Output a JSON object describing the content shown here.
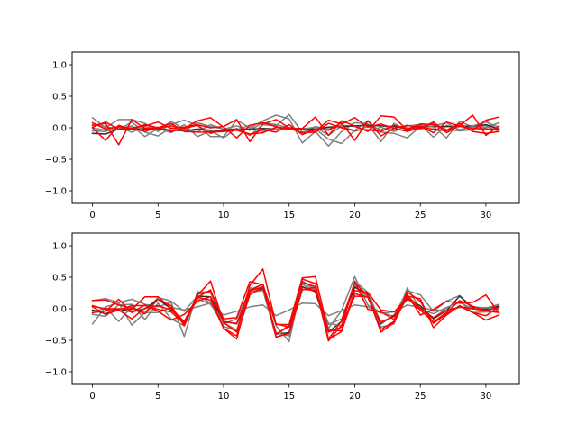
{
  "chart_data": [
    {
      "type": "line",
      "title": "",
      "xlabel": "",
      "ylabel": "",
      "xlim": [
        -1.55,
        32.55
      ],
      "ylim": [
        -1.2,
        1.2
      ],
      "xticks": [
        0,
        5,
        10,
        15,
        20,
        25,
        30
      ],
      "yticks": [
        -1.0,
        -0.5,
        0.0,
        0.5,
        1.0
      ],
      "grid": false,
      "x": [
        0,
        1,
        2,
        3,
        4,
        5,
        6,
        7,
        8,
        9,
        10,
        11,
        12,
        13,
        14,
        15,
        16,
        17,
        18,
        19,
        20,
        21,
        22,
        23,
        24,
        25,
        26,
        27,
        28,
        29,
        30,
        31
      ],
      "series": [
        {
          "color": "#808080",
          "values": [
            0.16,
            0.0,
            0.13,
            0.13,
            0.07,
            -0.06,
            0.05,
            0.12,
            0.04,
            -0.14,
            -0.14,
            0.12,
            0.0,
            0.11,
            0.2,
            0.14,
            -0.24,
            -0.06,
            -0.29,
            -0.06,
            0.08,
            0.06,
            -0.22,
            0.07,
            -0.05,
            0.05,
            0.02,
            -0.16,
            0.1,
            0.01,
            0.0,
            0.08
          ]
        },
        {
          "color": "#808080",
          "values": [
            0.0,
            -0.04,
            -0.02,
            0.03,
            -0.14,
            -0.01,
            -0.08,
            0.05,
            -0.14,
            -0.05,
            -0.16,
            -0.01,
            -0.12,
            0.05,
            0.03,
            0.21,
            -0.07,
            -0.02,
            -0.18,
            -0.25,
            -0.04,
            0.11,
            -0.07,
            -0.09,
            -0.16,
            0.02,
            0.07,
            -0.03,
            -0.05,
            -0.03,
            0.11,
            -0.05
          ]
        },
        {
          "color": "#808080",
          "values": [
            -0.05,
            -0.06,
            0.01,
            -0.07,
            0.02,
            -0.03,
            0.1,
            -0.02,
            -0.07,
            0.05,
            -0.02,
            0.03,
            -0.04,
            0.08,
            0.05,
            0.0,
            -0.08,
            0.02,
            -0.02,
            0.04,
            0.02,
            -0.05,
            0.01,
            -0.06,
            0.03,
            0.05,
            -0.15,
            0.04,
            -0.03,
            0.01,
            0.03,
            -0.06
          ]
        },
        {
          "color": "#303030",
          "values": [
            -0.09,
            -0.1,
            -0.02,
            -0.02,
            -0.02,
            -0.01,
            -0.04,
            -0.05,
            -0.02,
            -0.04,
            -0.05,
            -0.03,
            -0.02,
            -0.01,
            -0.02,
            -0.01,
            -0.01,
            -0.02,
            0.01,
            0.02,
            0.03,
            0.04,
            0.03,
            0.02,
            -0.01,
            0.01,
            0.02,
            0.02,
            0.02,
            0.03,
            0.05,
            -0.02
          ]
        },
        {
          "color": "#808080",
          "values": [
            0.05,
            0.02,
            -0.03,
            0.09,
            -0.07,
            -0.13,
            0.0,
            -0.05,
            0.08,
            0.02,
            -0.02,
            -0.03,
            0.04,
            -0.06,
            -0.02,
            0.0,
            -0.02,
            0.01,
            -0.12,
            0.03,
            -0.06,
            0.02,
            -0.03,
            0.04,
            0.0,
            -0.02,
            0.03,
            0.08,
            -0.04,
            0.03,
            0.09,
            0.01
          ]
        },
        {
          "color": "#ff0000",
          "values": [
            0.04,
            0.07,
            -0.27,
            0.13,
            -0.01,
            0.0,
            0.03,
            -0.01,
            0.11,
            0.16,
            0.01,
            -0.16,
            0.04,
            0.08,
            0.02,
            -0.03,
            -0.01,
            0.17,
            -0.12,
            0.11,
            0.03,
            -0.06,
            0.19,
            0.17,
            -0.04,
            0.03,
            -0.08,
            0.09,
            0.03,
            -0.04,
            0.12,
            0.17
          ]
        },
        {
          "color": "#ff0000",
          "values": [
            0.01,
            0.09,
            -0.02,
            0.0,
            0.03,
            0.09,
            -0.01,
            0.01,
            0.05,
            0.0,
            0.02,
            0.13,
            -0.22,
            0.06,
            0.13,
            0.0,
            -0.02,
            -0.06,
            0.12,
            0.06,
            0.16,
            0.01,
            0.06,
            -0.01,
            0.04,
            -0.01,
            0.09,
            -0.08,
            0.04,
            0.2,
            -0.12,
            0.03
          ]
        },
        {
          "color": "#ff0000",
          "values": [
            0.0,
            -0.2,
            0.04,
            -0.03,
            0.05,
            0.0,
            0.07,
            -0.06,
            -0.07,
            -0.07,
            -0.06,
            -0.04,
            -0.1,
            -0.08,
            0.01,
            -0.01,
            -0.08,
            -0.07,
            0.07,
            0.0,
            -0.04,
            -0.03,
            -0.06,
            0.04,
            -0.02,
            0.06,
            0.05,
            -0.04,
            0.07,
            -0.06,
            -0.09,
            -0.06
          ]
        },
        {
          "color": "#ff0000",
          "values": [
            0.08,
            -0.02,
            0.02,
            -0.01,
            -0.06,
            0.01,
            -0.06,
            -0.01,
            0.04,
            -0.09,
            -0.03,
            -0.02,
            -0.11,
            -0.03,
            -0.07,
            0.05,
            -0.11,
            -0.02,
            -0.04,
            0.08,
            -0.2,
            0.11,
            -0.13,
            -0.01,
            -0.06,
            0.0,
            -0.02,
            -0.05,
            0.03,
            -0.01,
            -0.02,
            -0.02
          ]
        }
      ]
    },
    {
      "type": "line",
      "title": "",
      "xlabel": "",
      "ylabel": "",
      "xlim": [
        -1.55,
        32.55
      ],
      "ylim": [
        -1.2,
        1.2
      ],
      "xticks": [
        0,
        5,
        10,
        15,
        20,
        25,
        30
      ],
      "yticks": [
        -1.0,
        -0.5,
        0.0,
        0.5,
        1.0
      ],
      "grid": false,
      "x": [
        0,
        1,
        2,
        3,
        4,
        5,
        6,
        7,
        8,
        9,
        10,
        11,
        12,
        13,
        14,
        15,
        16,
        17,
        18,
        19,
        20,
        21,
        22,
        23,
        24,
        25,
        26,
        27,
        28,
        29,
        30,
        31
      ],
      "series": [
        {
          "color": "#808080",
          "values": [
            0.13,
            0.16,
            0.1,
            0.15,
            0.07,
            0.03,
            0.1,
            -0.44,
            0.27,
            0.26,
            -0.24,
            -0.16,
            0.3,
            0.39,
            -0.27,
            -0.52,
            0.44,
            0.31,
            -0.31,
            -0.03,
            0.51,
            0.06,
            -0.06,
            -0.12,
            0.29,
            0.22,
            -0.04,
            0.12,
            0.21,
            0.0,
            0.01,
            0.07
          ]
        },
        {
          "color": "#808080",
          "values": [
            -0.24,
            0.03,
            0.09,
            -0.26,
            -0.06,
            0.18,
            0.12,
            -0.04,
            0.2,
            0.1,
            -0.28,
            -0.35,
            0.33,
            0.3,
            -0.45,
            -0.37,
            0.39,
            0.28,
            -0.25,
            -0.16,
            0.37,
            0.18,
            -0.29,
            -0.24,
            0.33,
            0.0,
            -0.15,
            0.01,
            0.12,
            -0.06,
            -0.05,
            -0.05
          ]
        },
        {
          "color": "#808080",
          "values": [
            -0.07,
            0.02,
            -0.2,
            0.03,
            -0.06,
            -0.06,
            0.02,
            -0.02,
            0.03,
            0.09,
            -0.1,
            -0.04,
            0.03,
            0.06,
            -0.11,
            -0.02,
            0.09,
            0.08,
            -0.11,
            -0.03,
            0.06,
            0.03,
            -0.07,
            -0.05,
            0.06,
            0.02,
            -0.02,
            -0.03,
            0.02,
            0.03,
            0.01,
            0.06
          ]
        },
        {
          "color": "#303030",
          "values": [
            -0.02,
            -0.08,
            0.0,
            -0.05,
            0.0,
            0.15,
            0.0,
            -0.22,
            0.2,
            0.19,
            -0.2,
            -0.24,
            0.25,
            0.32,
            -0.4,
            -0.38,
            0.35,
            0.27,
            -0.37,
            -0.2,
            0.34,
            0.23,
            -0.24,
            -0.1,
            0.15,
            0.05,
            -0.16,
            -0.03,
            0.2,
            0.02,
            -0.01,
            0.04
          ]
        },
        {
          "color": "#808080",
          "values": [
            -0.09,
            -0.12,
            0.06,
            0.07,
            -0.17,
            0.09,
            -0.16,
            -0.27,
            0.16,
            0.07,
            -0.22,
            -0.34,
            0.26,
            0.29,
            -0.38,
            -0.43,
            0.43,
            0.3,
            -0.23,
            -0.27,
            0.44,
            0.26,
            -0.22,
            -0.12,
            0.18,
            0.0,
            -0.08,
            0.02,
            0.1,
            0.0,
            0.02,
            -0.01
          ]
        },
        {
          "color": "#ff0000",
          "values": [
            0.04,
            0.0,
            0.0,
            -0.01,
            0.19,
            0.19,
            0.01,
            -0.21,
            0.21,
            0.44,
            -0.22,
            -0.37,
            0.37,
            0.63,
            -0.25,
            -0.25,
            0.49,
            0.51,
            -0.37,
            -0.29,
            0.43,
            -0.01,
            -0.05,
            -0.17,
            0.23,
            -0.1,
            -0.01,
            0.12,
            0.09,
            0.1,
            0.22,
            -0.07
          ]
        },
        {
          "color": "#ff0000",
          "values": [
            0.13,
            0.14,
            0.06,
            0.01,
            -0.08,
            0.15,
            0.05,
            -0.27,
            0.23,
            0.28,
            -0.16,
            -0.14,
            0.43,
            0.38,
            -0.24,
            -0.29,
            0.47,
            0.4,
            -0.49,
            -0.36,
            0.29,
            0.26,
            -0.02,
            -0.05,
            0.17,
            -0.02,
            -0.21,
            -0.06,
            0.13,
            0.04,
            -0.03,
            0.02
          ]
        },
        {
          "color": "#ff0000",
          "values": [
            -0.06,
            -0.04,
            0.15,
            -0.06,
            0.06,
            -0.04,
            -0.18,
            -0.09,
            0.12,
            0.19,
            -0.31,
            -0.48,
            0.29,
            0.39,
            -0.45,
            -0.39,
            0.3,
            0.34,
            -0.48,
            -0.19,
            0.41,
            0.21,
            -0.37,
            -0.22,
            0.2,
            0.16,
            -0.3,
            -0.1,
            0.05,
            -0.06,
            -0.11,
            0.03
          ]
        },
        {
          "color": "#ff0000",
          "values": [
            0.03,
            -0.09,
            -0.02,
            -0.16,
            0.01,
            0.05,
            -0.02,
            -0.2,
            0.18,
            0.14,
            -0.31,
            -0.43,
            0.22,
            0.35,
            -0.41,
            -0.26,
            0.42,
            0.35,
            -0.51,
            -0.26,
            0.2,
            0.19,
            -0.33,
            -0.2,
            0.27,
            0.12,
            -0.23,
            -0.08,
            0.04,
            -0.06,
            -0.18,
            -0.1
          ]
        },
        {
          "color": "#ff0000",
          "values": [
            0.05,
            -0.01,
            -0.02,
            0.05,
            0.05,
            -0.01,
            -0.05,
            -0.24,
            0.18,
            0.3,
            -0.21,
            -0.23,
            0.28,
            0.35,
            -0.4,
            -0.28,
            0.31,
            0.29,
            -0.34,
            -0.35,
            0.24,
            0.18,
            -0.21,
            -0.12,
            0.21,
            0.01,
            -0.14,
            -0.03,
            0.03,
            0.0,
            -0.03,
            -0.06
          ]
        }
      ]
    }
  ]
}
